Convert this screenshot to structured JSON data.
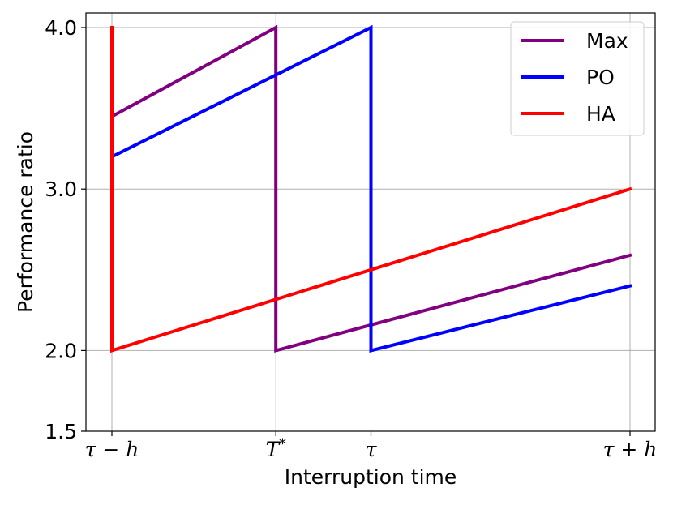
{
  "chart_data": {
    "type": "line",
    "xlabel": "Interruption time",
    "ylabel": "Performance ratio",
    "xlim": [
      0,
      3.2
    ],
    "ylim": [
      1.5,
      4.0
    ],
    "grid": true,
    "legend_position": "top-right",
    "x_ticks": [
      {
        "value": 0,
        "label": "τ − h"
      },
      {
        "value": 1,
        "label": "T*"
      },
      {
        "value": 1.58,
        "label": "τ"
      },
      {
        "value": 3.16,
        "label": "τ + h"
      }
    ],
    "y_ticks": [
      {
        "value": 1.5,
        "label": "1.5"
      },
      {
        "value": 2.0,
        "label": "2.0"
      },
      {
        "value": 3.0,
        "label": "3.0"
      },
      {
        "value": 4.0,
        "label": "4.0"
      }
    ],
    "series": [
      {
        "name": "Max",
        "color": "#800080",
        "x": [
          0,
          0,
          1,
          1,
          3.16
        ],
        "y": [
          4.0,
          3.45,
          4.0,
          2.0,
          2.59
        ]
      },
      {
        "name": "PO",
        "color": "#0000ff",
        "x": [
          0,
          0,
          1.58,
          1.58,
          3.16
        ],
        "y": [
          4.0,
          3.2,
          4.0,
          2.0,
          2.4
        ]
      },
      {
        "name": "HA",
        "color": "#ff0000",
        "x": [
          0,
          0,
          3.16
        ],
        "y": [
          4.0,
          2.0,
          3.0
        ]
      }
    ]
  }
}
